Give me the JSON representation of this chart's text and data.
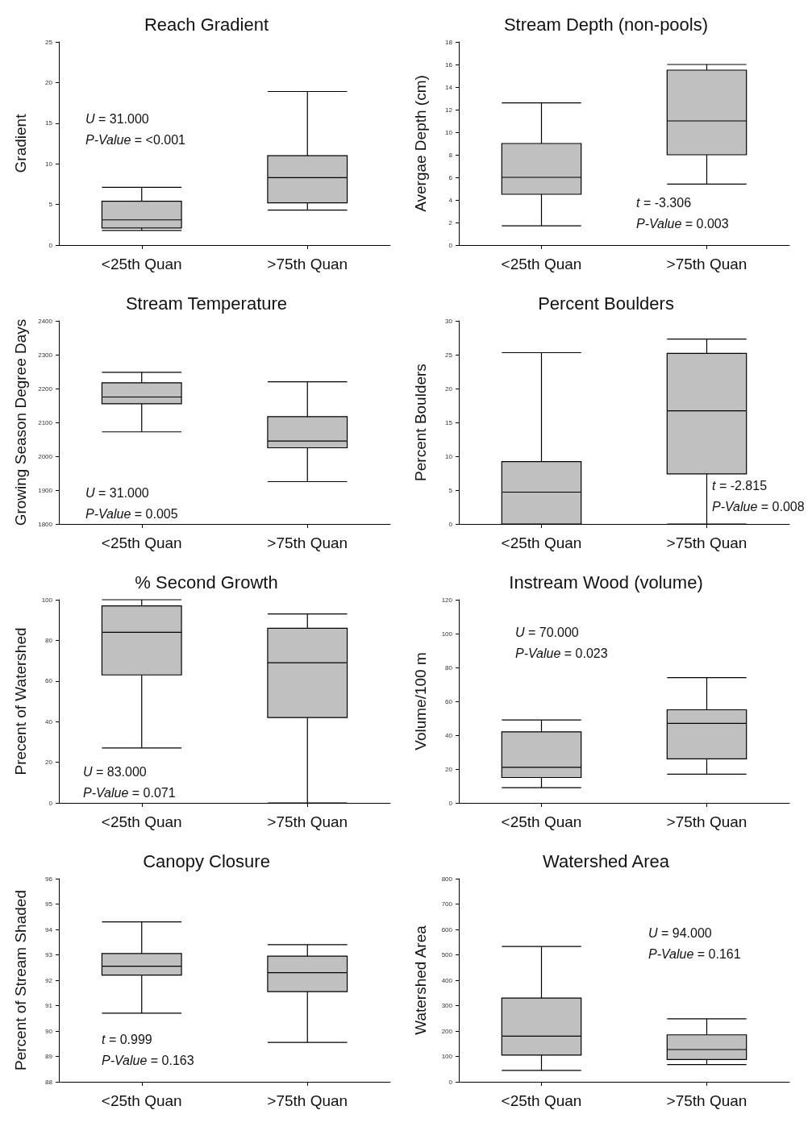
{
  "chart_data": [
    {
      "type": "box",
      "title": "Reach Gradient",
      "ylabel": "Gradient",
      "categories": [
        "<25th Quan",
        ">75th Quan"
      ],
      "color": "#c0c0c0",
      "ylim": [
        0,
        25
      ],
      "yticks": [
        0,
        5,
        10,
        15,
        20,
        25
      ],
      "boxes": [
        {
          "low": 1.8,
          "q1": 2.1,
          "median": 3.1,
          "q3": 5.4,
          "high": 7.1
        },
        {
          "low": 4.3,
          "q1": 5.2,
          "median": 8.3,
          "q3": 11,
          "high": 18.9
        }
      ],
      "annotations": [
        "U = 31.000",
        "P-Value = <0.001"
      ]
    },
    {
      "type": "box",
      "title": "Stream Depth (non-pools)",
      "ylabel": "Avergae Depth (cm)",
      "categories": [
        "<25th Quan",
        ">75th Quan"
      ],
      "color": "#c0c0c0",
      "ylim": [
        0,
        18
      ],
      "yticks": [
        0,
        2,
        4,
        6,
        8,
        10,
        12,
        14,
        16,
        18
      ],
      "boxes": [
        {
          "low": 1.7,
          "q1": 4.5,
          "median": 6,
          "q3": 9,
          "high": 12.6
        },
        {
          "low": 5.4,
          "q1": 8,
          "median": 11,
          "q3": 15.5,
          "high": 16
        }
      ],
      "annotations": [
        "t = -3.306",
        "P-Value = 0.003"
      ]
    },
    {
      "type": "box",
      "title": "Stream Temperature",
      "ylabel": "Growing Season Degree Days",
      "categories": [
        "<25th Quan",
        ">75th Quan"
      ],
      "color": "#c0c0c0",
      "ylim": [
        1800,
        2400
      ],
      "yticks": [
        1800,
        1900,
        2000,
        2100,
        2200,
        2300,
        2400
      ],
      "boxes": [
        {
          "low": 2072,
          "q1": 2155,
          "median": 2175,
          "q3": 2217,
          "high": 2248
        },
        {
          "low": 1925,
          "q1": 2025,
          "median": 2045,
          "q3": 2117,
          "high": 2220
        }
      ],
      "annotations": [
        "U = 31.000",
        "P-Value = 0.005"
      ]
    },
    {
      "type": "box",
      "title": "Percent Boulders",
      "ylabel": "Percent Boulders",
      "categories": [
        "<25th Quan",
        ">75th Quan"
      ],
      "color": "#c0c0c0",
      "ylim": [
        0,
        30
      ],
      "yticks": [
        0,
        5,
        10,
        15,
        20,
        25,
        30
      ],
      "boxes": [
        {
          "low": 0,
          "q1": 0,
          "median": 4.7,
          "q3": 9.2,
          "high": 25.3
        },
        {
          "low": 0,
          "q1": 7.4,
          "median": 16.7,
          "q3": 25.2,
          "high": 27.3
        }
      ],
      "annotations": [
        "t = -2.815",
        "P-Value = 0.008"
      ]
    },
    {
      "type": "box",
      "title": "% Second Growth",
      "ylabel": "Precent of Watershed",
      "categories": [
        "<25th Quan",
        ">75th Quan"
      ],
      "color": "#c0c0c0",
      "ylim": [
        0,
        100
      ],
      "yticks": [
        0,
        20,
        40,
        60,
        80,
        100
      ],
      "boxes": [
        {
          "low": 27,
          "q1": 63,
          "median": 84,
          "q3": 97,
          "high": 100
        },
        {
          "low": 0,
          "q1": 42,
          "median": 69,
          "q3": 86,
          "high": 93
        }
      ],
      "annotations": [
        "U = 83.000",
        "P-Value = 0.071"
      ]
    },
    {
      "type": "box",
      "title": "Instream Wood (volume)",
      "ylabel": "Volume/100 m",
      "categories": [
        "<25th Quan",
        ">75th Quan"
      ],
      "color": "#c0c0c0",
      "ylim": [
        0,
        120
      ],
      "yticks": [
        0,
        20,
        40,
        60,
        80,
        100,
        120
      ],
      "boxes": [
        {
          "low": 9,
          "q1": 15,
          "median": 21,
          "q3": 42,
          "high": 49
        },
        {
          "low": 17,
          "q1": 26,
          "median": 47,
          "q3": 55,
          "high": 74
        }
      ],
      "annotations": [
        "U = 70.000",
        "P-Value = 0.023"
      ]
    },
    {
      "type": "box",
      "title": "Canopy Closure",
      "ylabel": "Percent of Stream Shaded",
      "categories": [
        "<25th Quan",
        ">75th Quan"
      ],
      "color": "#c0c0c0",
      "ylim": [
        88,
        96
      ],
      "yticks": [
        88,
        89,
        90,
        91,
        92,
        93,
        94,
        95,
        96
      ],
      "boxes": [
        {
          "low": 90.7,
          "q1": 92.2,
          "median": 92.55,
          "q3": 93.05,
          "high": 94.3
        },
        {
          "low": 89.55,
          "q1": 91.55,
          "median": 92.3,
          "q3": 92.95,
          "high": 93.4
        }
      ],
      "annotations": [
        "t = 0.999",
        "P-Value = 0.163"
      ]
    },
    {
      "type": "box",
      "title": "Watershed Area",
      "ylabel": "Watershed Area",
      "categories": [
        "<25th Quan",
        ">75th Quan"
      ],
      "color": "#c0c0c0",
      "ylim": [
        0,
        800
      ],
      "yticks": [
        0,
        100,
        200,
        300,
        400,
        500,
        600,
        700,
        800
      ],
      "boxes": [
        {
          "low": 45,
          "q1": 105,
          "median": 180,
          "q3": 330,
          "high": 533
        },
        {
          "low": 68,
          "q1": 88,
          "median": 127,
          "q3": 185,
          "high": 248
        }
      ],
      "annotations": [
        "U = 94.000",
        "P-Value = 0.161"
      ]
    }
  ]
}
